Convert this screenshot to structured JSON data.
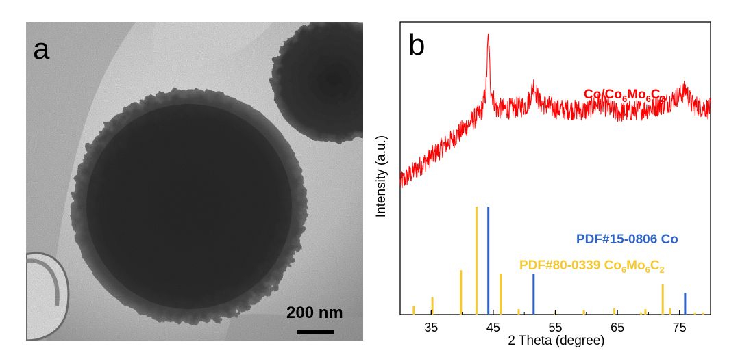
{
  "panel_a": {
    "label": "a",
    "scale_bar_text": "200 nm",
    "scale_bar_value_nm": 200
  },
  "panel_b": {
    "label": "b"
  },
  "chart_data": {
    "type": "line",
    "ylabel": "Intensity (a.u.)",
    "xlabel": "2 Theta (degree)",
    "xlim": [
      30,
      80
    ],
    "x_ticks": [
      35,
      45,
      55,
      65,
      75
    ],
    "x_tick_labels": [
      "35",
      "45",
      "55",
      "65",
      "75"
    ],
    "y_ticks_shown": false,
    "series": [
      {
        "name": "Co/Co6Mo6C2",
        "label_main": "Co/Co",
        "label_sub1": "6",
        "label_mid": "Mo",
        "label_sub2": "6",
        "label_mid2": "C",
        "label_sub3": "2",
        "color": "#ff0000",
        "kind": "xrd-pattern",
        "points": [
          [
            30,
            0.22
          ],
          [
            33,
            0.3
          ],
          [
            36,
            0.38
          ],
          [
            39,
            0.46
          ],
          [
            41,
            0.52
          ],
          [
            43,
            0.58
          ],
          [
            43.8,
            0.68
          ],
          [
            44.2,
            0.98
          ],
          [
            44.6,
            0.7
          ],
          [
            45.5,
            0.6
          ],
          [
            48,
            0.6
          ],
          [
            50.5,
            0.62
          ],
          [
            51.5,
            0.72
          ],
          [
            52.5,
            0.63
          ],
          [
            55,
            0.6
          ],
          [
            60,
            0.59
          ],
          [
            62,
            0.63
          ],
          [
            65,
            0.58
          ],
          [
            70,
            0.6
          ],
          [
            73,
            0.63
          ],
          [
            75.5,
            0.68
          ],
          [
            76,
            0.7
          ],
          [
            77,
            0.62
          ],
          [
            80,
            0.6
          ]
        ]
      }
    ],
    "references": [
      {
        "name": "PDF#15-0806 Co",
        "color": "#2e64c8",
        "peaks": [
          [
            44.2,
            1.0
          ],
          [
            51.5,
            0.38
          ],
          [
            75.9,
            0.2
          ]
        ]
      },
      {
        "name": "PDF#80-0339 Co6Mo6C2",
        "label_main": "PDF#80-0339 Co",
        "label_sub1": "6",
        "label_mid": "Mo",
        "label_sub2": "6",
        "label_mid2": "C",
        "label_sub3": "2",
        "color": "#f5c830",
        "peaks": [
          [
            32.2,
            0.08
          ],
          [
            35.2,
            0.16
          ],
          [
            39.8,
            0.41
          ],
          [
            42.3,
            1.0
          ],
          [
            46.2,
            0.38
          ],
          [
            49.1,
            0.05
          ],
          [
            55.0,
            0.02
          ],
          [
            59.6,
            0.04
          ],
          [
            64.5,
            0.06
          ],
          [
            68.8,
            0.02
          ],
          [
            69.5,
            0.05
          ],
          [
            72.3,
            0.28
          ],
          [
            73.5,
            0.06
          ],
          [
            77.5,
            0.02
          ],
          [
            78.8,
            0.02
          ]
        ]
      }
    ]
  }
}
